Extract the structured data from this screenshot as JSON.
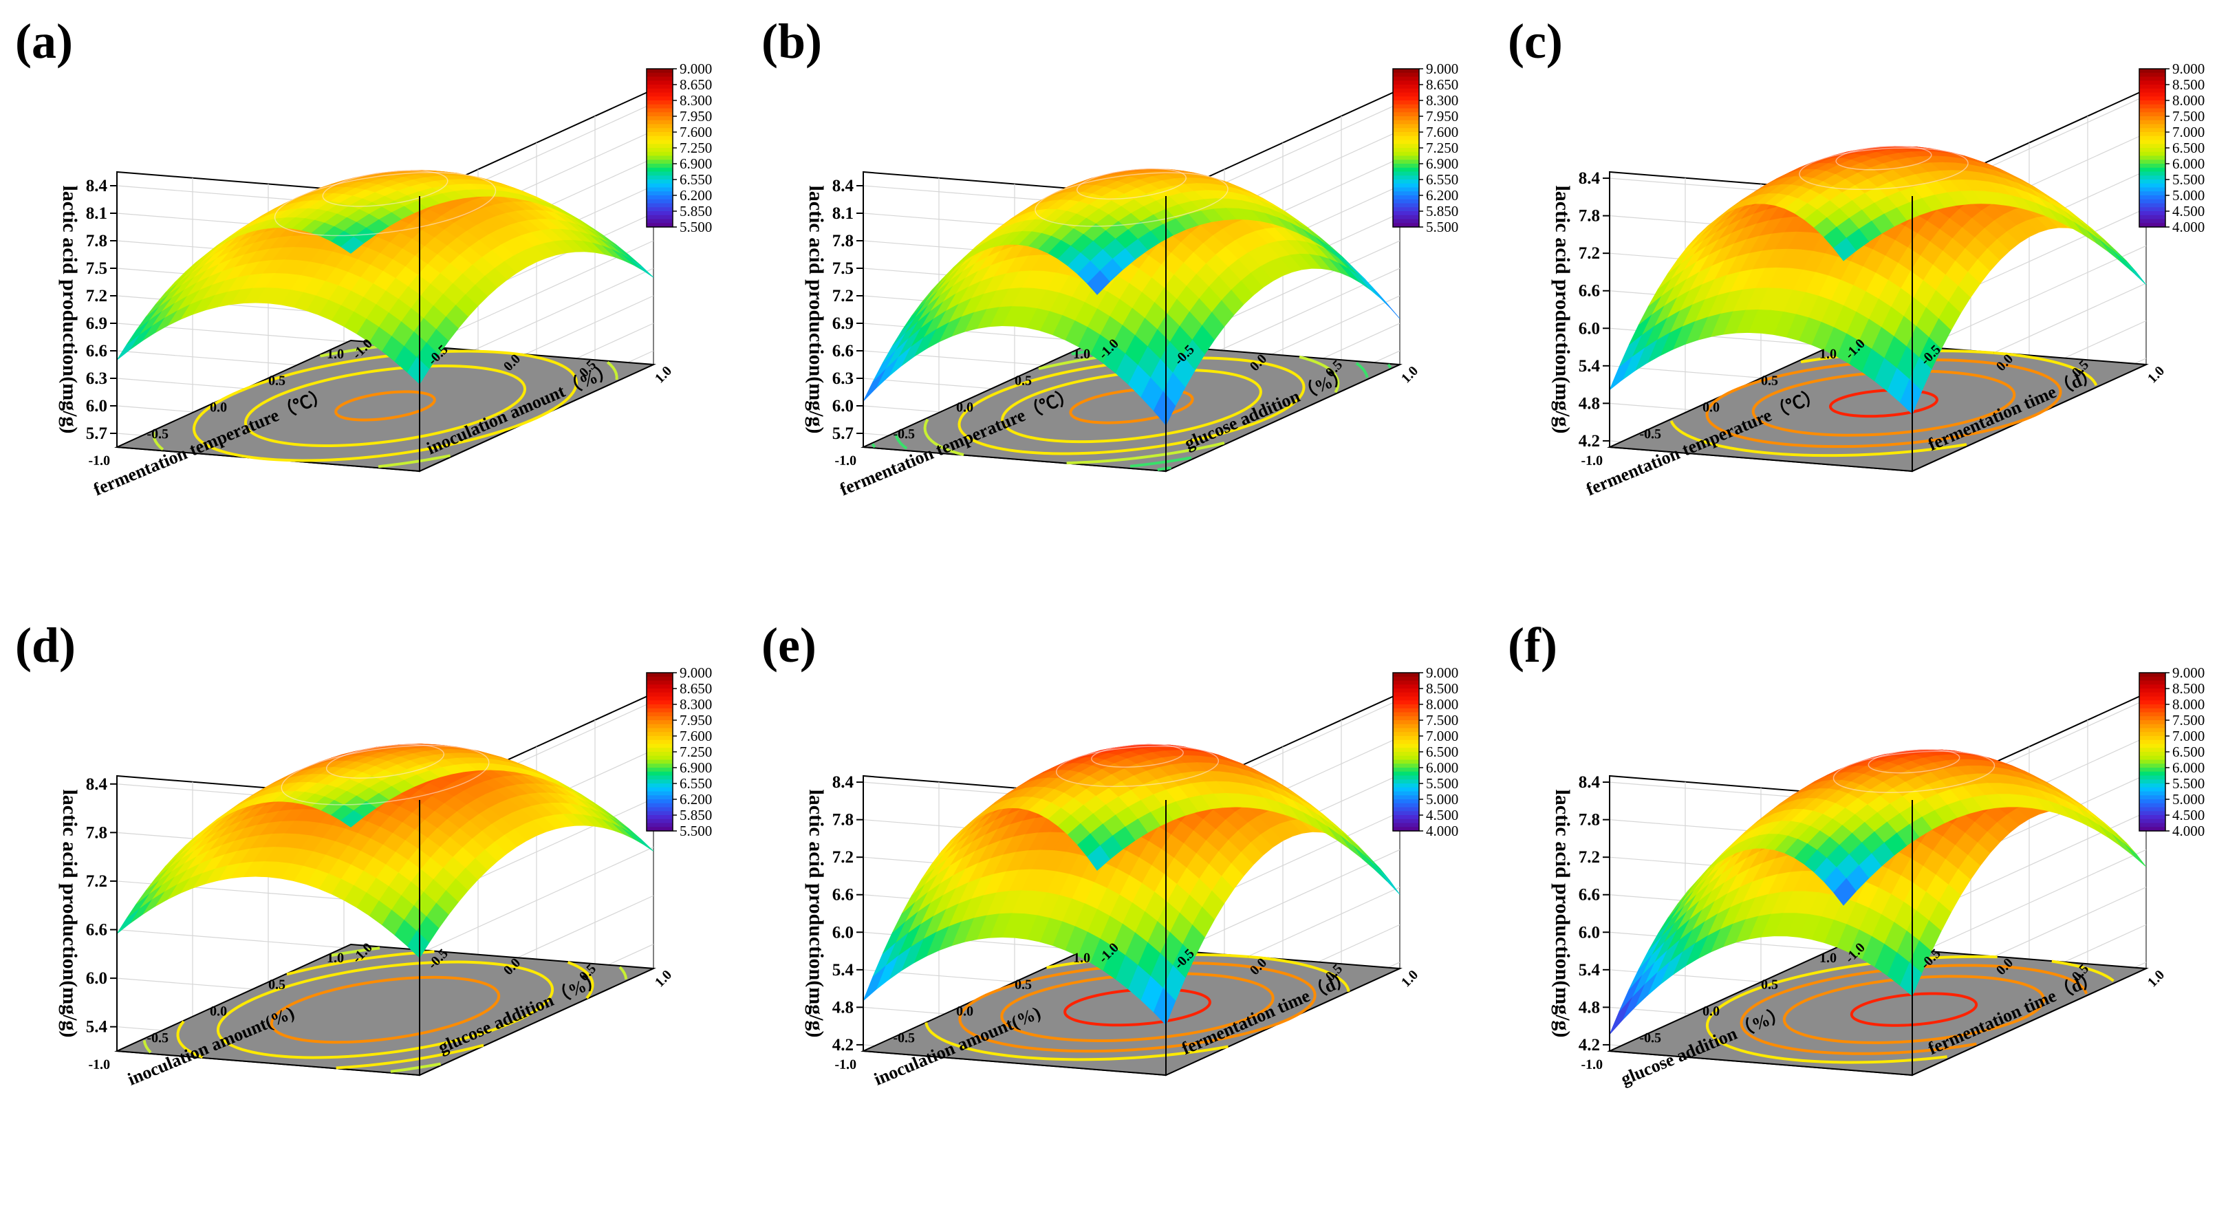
{
  "chart_data": [
    {
      "type": "surface",
      "panel_label": "(a)",
      "zlabel": "lactic acid production(mg/g)",
      "z_ticks": [
        "5.7",
        "6.0",
        "6.3",
        "6.6",
        "6.9",
        "7.2",
        "7.5",
        "7.8",
        "8.1",
        "8.4"
      ],
      "zlim": [
        5.55,
        8.55
      ],
      "left_axis": {
        "label": "fermentation temperature（℃）",
        "ticks": [
          "-1.0",
          "-0.5",
          "0.0",
          "0.5",
          "1.0"
        ]
      },
      "right_axis": {
        "label": "inoculation amount（%）",
        "ticks": [
          "-1.0",
          "-0.5",
          "0.0",
          "0.5",
          "1.0"
        ]
      },
      "colorbar_ticks": [
        "5.500",
        "5.850",
        "6.200",
        "6.550",
        "6.900",
        "7.250",
        "7.600",
        "7.950",
        "8.300",
        "8.650",
        "9.000"
      ],
      "colorbar_range": [
        5.5,
        9.0
      ],
      "surface": {
        "peak": 8.0,
        "peak_u": 0.0,
        "peak_v": 0.0,
        "coef_u": 0.75,
        "coef_v": 0.75,
        "cross": 0.0
      },
      "contour_levels": [
        6.9,
        7.25,
        7.6,
        7.95
      ]
    },
    {
      "type": "surface",
      "panel_label": "(b)",
      "zlabel": "lactic acid production(mg/g)",
      "z_ticks": [
        "5.7",
        "6.0",
        "6.3",
        "6.6",
        "6.9",
        "7.2",
        "7.5",
        "7.8",
        "8.1",
        "8.4"
      ],
      "zlim": [
        5.55,
        8.55
      ],
      "left_axis": {
        "label": "fermentation temperature（℃）",
        "ticks": [
          "-1.0",
          "-0.5",
          "0.0",
          "0.5",
          "1.0"
        ]
      },
      "right_axis": {
        "label": "glucose addition（%）",
        "ticks": [
          "-1.0",
          "-0.5",
          "0.0",
          "0.5",
          "1.0"
        ]
      },
      "colorbar_ticks": [
        "5.500",
        "5.850",
        "6.200",
        "6.550",
        "6.900",
        "7.250",
        "7.600",
        "7.950",
        "8.300",
        "8.650",
        "9.000"
      ],
      "colorbar_range": [
        5.5,
        9.0
      ],
      "surface": {
        "peak": 8.05,
        "peak_u": 0.0,
        "peak_v": 0.0,
        "coef_u": 1.05,
        "coef_v": 0.95,
        "cross": 0.0
      },
      "contour_levels": [
        6.2,
        6.55,
        6.9,
        7.25,
        7.6,
        7.95
      ]
    },
    {
      "type": "surface",
      "panel_label": "(c)",
      "zlabel": "lactic acid production(mg/g)",
      "z_ticks": [
        "4.2",
        "4.8",
        "5.4",
        "6.0",
        "6.6",
        "7.2",
        "7.8",
        "8.4"
      ],
      "zlim": [
        4.1,
        8.5
      ],
      "left_axis": {
        "label": "fermentation temperature（℃）",
        "ticks": [
          "-1.0",
          "-0.5",
          "0.0",
          "0.5",
          "1.0"
        ]
      },
      "right_axis": {
        "label": "fermentation time（d）",
        "ticks": [
          "-1.0",
          "-0.5",
          "0.0",
          "0.5",
          "1.0"
        ]
      },
      "colorbar_ticks": [
        "4.000",
        "4.500",
        "5.000",
        "5.500",
        "6.000",
        "6.500",
        "7.000",
        "7.500",
        "8.000",
        "8.500",
        "9.000"
      ],
      "colorbar_range": [
        4.0,
        9.0
      ],
      "surface": {
        "peak": 8.1,
        "peak_u": 0.05,
        "peak_v": 0.0,
        "coef_u": 1.8,
        "coef_v": 1.1,
        "cross": 0.0
      },
      "contour_levels": [
        6.5,
        7.0,
        7.5,
        8.0
      ]
    },
    {
      "type": "surface",
      "panel_label": "(d)",
      "zlabel": "lactic acid production(mg/g)",
      "z_ticks": [
        "5.4",
        "6.0",
        "6.6",
        "7.2",
        "7.8",
        "8.4"
      ],
      "zlim": [
        5.1,
        8.5
      ],
      "left_axis": {
        "label": "inoculation amount(%)",
        "ticks": [
          "-1.0",
          "-0.5",
          "0.0",
          "0.5",
          "1.0"
        ]
      },
      "right_axis": {
        "label": "glucose addition（%）",
        "ticks": [
          "-1.0",
          "-0.5",
          "0.0",
          "0.5",
          "1.0"
        ]
      },
      "colorbar_ticks": [
        "5.500",
        "5.850",
        "6.200",
        "6.550",
        "6.900",
        "7.250",
        "7.600",
        "7.950",
        "8.300",
        "8.650",
        "9.000"
      ],
      "colorbar_range": [
        5.5,
        9.0
      ],
      "surface": {
        "peak": 8.25,
        "peak_u": 0.0,
        "peak_v": 0.0,
        "coef_u": 0.85,
        "coef_v": 0.85,
        "cross": 0.0
      },
      "contour_levels": [
        6.9,
        7.25,
        7.6,
        7.95
      ]
    },
    {
      "type": "surface",
      "panel_label": "(e)",
      "zlabel": "lactic acid production(mg/g)",
      "z_ticks": [
        "4.2",
        "4.8",
        "5.4",
        "6.0",
        "6.6",
        "7.2",
        "7.8",
        "8.4"
      ],
      "zlim": [
        4.1,
        8.5
      ],
      "left_axis": {
        "label": "inoculation amount(%)",
        "ticks": [
          "-1.0",
          "-0.5",
          "0.0",
          "0.5",
          "1.0"
        ]
      },
      "right_axis": {
        "label": "fermentation time（d）",
        "ticks": [
          "-1.0",
          "-0.5",
          "0.0",
          "0.5",
          "1.0"
        ]
      },
      "colorbar_ticks": [
        "4.000",
        "4.500",
        "5.000",
        "5.500",
        "6.000",
        "6.500",
        "7.000",
        "7.500",
        "8.000",
        "8.500",
        "9.000"
      ],
      "colorbar_range": [
        4.0,
        9.0
      ],
      "surface": {
        "peak": 8.2,
        "peak_u": 0.05,
        "peak_v": 0.0,
        "coef_u": 1.9,
        "coef_v": 1.2,
        "cross": 0.0
      },
      "contour_levels": [
        6.5,
        7.0,
        7.5,
        8.0
      ]
    },
    {
      "type": "surface",
      "panel_label": "(f)",
      "zlabel": "lactic acid production(mg/g)",
      "z_ticks": [
        "4.2",
        "4.8",
        "5.4",
        "6.0",
        "6.6",
        "7.2",
        "7.8",
        "8.4"
      ],
      "zlim": [
        4.1,
        8.5
      ],
      "left_axis": {
        "label": "glucose addition（%）",
        "ticks": [
          "-1.0",
          "-0.5",
          "0.0",
          "0.5",
          "1.0"
        ]
      },
      "right_axis": {
        "label": "fermentation time（d）",
        "ticks": [
          "-1.0",
          "-0.5",
          "0.0",
          "0.5",
          "1.0"
        ]
      },
      "colorbar_ticks": [
        "4.000",
        "4.500",
        "5.000",
        "5.500",
        "6.000",
        "6.500",
        "7.000",
        "7.500",
        "8.000",
        "8.500",
        "9.000"
      ],
      "colorbar_range": [
        4.0,
        9.0
      ],
      "surface": {
        "peak": 8.15,
        "peak_u": 0.05,
        "peak_v": -0.2,
        "coef_u": 1.8,
        "coef_v": 1.25,
        "cross": 0.0
      },
      "contour_levels": [
        6.5,
        7.0,
        7.5,
        8.0
      ]
    }
  ],
  "colormap": [
    "#5a008c",
    "#4a2cd8",
    "#1f72ff",
    "#00c8ff",
    "#00e070",
    "#b8f000",
    "#ffea00",
    "#ffb000",
    "#ff6a00",
    "#ff1a00",
    "#d50000",
    "#8a0000"
  ],
  "contour_colors": {
    "low": "#39e06a",
    "mid_low": "#c8f032",
    "mid": "#ffea00",
    "mid_high": "#ff8c00",
    "high": "#ff2200",
    "top": "#e00000"
  },
  "floor_color": "#8c8c8c"
}
